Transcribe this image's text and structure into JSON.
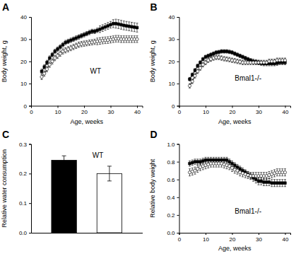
{
  "chart_data": [
    {
      "type": "line",
      "title": "A",
      "annotations": [
        "WT"
      ],
      "xlabel": "Age, weeks",
      "ylabel": "Body weight, g",
      "xlim": [
        0,
        42
      ],
      "ylim": [
        0,
        40
      ],
      "xticks": [
        0,
        10,
        20,
        30,
        40
      ],
      "yticks": [
        0,
        10,
        20,
        30,
        40
      ],
      "x": [
        4,
        5,
        6,
        7,
        8,
        9,
        10,
        11,
        12,
        13,
        14,
        15,
        16,
        17,
        18,
        19,
        20,
        21,
        22,
        23,
        24,
        25,
        26,
        27,
        28,
        29,
        30,
        31,
        32,
        33,
        34,
        35,
        36,
        37,
        38,
        39,
        40
      ],
      "series": [
        {
          "color": "black",
          "marker": "square",
          "line_style": "solid",
          "values": [
            15.5,
            17.5,
            19.5,
            21.5,
            23.0,
            24.5,
            25.5,
            26.5,
            27.5,
            28.5,
            29.0,
            29.5,
            30.0,
            30.5,
            31.0,
            31.5,
            32.0,
            32.5,
            33.0,
            33.5,
            33.5,
            34.0,
            34.5,
            35.0,
            35.5,
            36.0,
            36.5,
            37.0,
            37.0,
            36.8,
            36.5,
            36.2,
            36.0,
            35.8,
            35.6,
            35.4,
            35.2
          ],
          "errors": [
            1.0,
            1.0,
            1.0,
            1.0,
            1.0,
            1.0,
            1.0,
            1.0,
            1.0,
            1.0,
            1.0,
            1.0,
            1.0,
            1.0,
            1.0,
            1.0,
            1.0,
            1.0,
            1.0,
            1.0,
            1.0,
            1.0,
            1.5,
            1.5,
            1.5,
            1.5,
            1.5,
            1.8,
            2.0,
            2.0,
            2.0,
            2.0,
            2.0,
            2.0,
            2.0,
            2.0,
            2.0
          ]
        },
        {
          "color": "black",
          "marker": "open-circle",
          "line_style": "solid",
          "values": [
            13.0,
            14.5,
            16.5,
            18.5,
            20.0,
            21.5,
            22.5,
            23.5,
            24.5,
            25.0,
            25.5,
            26.0,
            26.5,
            27.0,
            27.5,
            27.8,
            28.0,
            28.2,
            28.4,
            28.6,
            28.8,
            29.0,
            29.2,
            29.4,
            29.5,
            29.6,
            29.8,
            30.0,
            30.2,
            30.2,
            30.0,
            30.0,
            30.0,
            30.0,
            30.0,
            30.0,
            30.0
          ],
          "errors": [
            1.2,
            1.2,
            1.2,
            1.2,
            1.2,
            1.2,
            1.2,
            1.2,
            1.2,
            1.2,
            1.2,
            1.2,
            1.2,
            1.2,
            1.2,
            1.2,
            1.2,
            1.2,
            1.2,
            1.2,
            1.2,
            1.5,
            1.5,
            1.5,
            1.5,
            1.5,
            1.5,
            1.5,
            1.5,
            1.5,
            1.5,
            1.5,
            1.5,
            1.5,
            1.5,
            1.5,
            1.5
          ]
        }
      ]
    },
    {
      "type": "line",
      "title": "B",
      "annotations": [
        "Bmal1-/-"
      ],
      "xlabel": "Age, weeks",
      "ylabel": "Body weight, g",
      "xlim": [
        0,
        42
      ],
      "ylim": [
        0,
        40
      ],
      "xticks": [
        0,
        10,
        20,
        30,
        40
      ],
      "yticks": [
        0,
        10,
        20,
        30,
        40
      ],
      "x": [
        4,
        5,
        6,
        7,
        8,
        9,
        10,
        11,
        12,
        13,
        14,
        15,
        16,
        17,
        18,
        19,
        20,
        21,
        22,
        23,
        24,
        25,
        26,
        27,
        28,
        29,
        30,
        31,
        32,
        33,
        34,
        35,
        36,
        37,
        38,
        39,
        40
      ],
      "series": [
        {
          "color": "black",
          "marker": "square",
          "line_style": "solid",
          "values": [
            12.0,
            14.0,
            16.0,
            18.0,
            19.5,
            21.0,
            22.0,
            22.5,
            23.0,
            23.5,
            24.0,
            24.2,
            24.5,
            24.5,
            24.5,
            24.3,
            24.0,
            23.5,
            23.0,
            22.5,
            22.0,
            21.5,
            21.0,
            20.5,
            20.0,
            19.8,
            19.5,
            19.2,
            19.0,
            19.0,
            19.0,
            19.0,
            19.0,
            19.2,
            19.5,
            19.5,
            19.5
          ],
          "errors": [
            0.8,
            0.8,
            0.8,
            0.8,
            0.8,
            0.8,
            0.8,
            0.8,
            0.8,
            0.8,
            0.8,
            0.8,
            0.8,
            0.8,
            0.8,
            0.8,
            0.8,
            0.8,
            0.8,
            0.8,
            0.8,
            0.8,
            0.8,
            0.8,
            1.0,
            1.0,
            1.0,
            1.0,
            1.0,
            1.0,
            1.0,
            1.0,
            1.0,
            1.0,
            1.0,
            1.0,
            1.0
          ]
        },
        {
          "color": "black",
          "marker": "open-circle",
          "line_style": "solid",
          "values": [
            9.0,
            11.0,
            13.5,
            15.5,
            17.0,
            18.5,
            19.5,
            20.5,
            21.0,
            21.5,
            21.8,
            21.8,
            21.5,
            21.2,
            21.0,
            20.8,
            20.5,
            20.3,
            20.0,
            19.8,
            19.5,
            19.5,
            19.5,
            19.5,
            19.5,
            19.5,
            19.5,
            19.5,
            19.5,
            19.5,
            20.0,
            20.0,
            20.0,
            20.5,
            20.5,
            20.5,
            20.5
          ],
          "errors": [
            1.0,
            1.0,
            1.0,
            1.0,
            1.0,
            1.0,
            1.0,
            1.0,
            1.0,
            1.0,
            1.0,
            1.0,
            1.0,
            1.0,
            1.0,
            1.0,
            1.0,
            1.0,
            1.0,
            1.0,
            1.0,
            1.0,
            1.0,
            1.0,
            1.0,
            1.0,
            1.0,
            1.0,
            1.0,
            1.0,
            1.0,
            1.0,
            1.0,
            1.0,
            1.0,
            1.0,
            1.0
          ]
        }
      ]
    },
    {
      "type": "bar",
      "title": "C",
      "annotations": [
        "WT"
      ],
      "ylabel": "Relative water consumption",
      "categories": [
        null,
        null
      ],
      "values": [
        0.245,
        0.2
      ],
      "errors": [
        0.015,
        0.025
      ],
      "colors": [
        "black",
        "white"
      ],
      "ylim": [
        0,
        0.3
      ],
      "yticks": [
        {
          "value": 0.0,
          "label": "0.0"
        },
        0.1,
        0.2,
        0.3
      ],
      "tick_labels": "y"
    },
    {
      "type": "line",
      "title": "D",
      "annotations": [
        "Bmal1-/-"
      ],
      "xlabel": "Age, weeks",
      "ylabel": "Relative body weight",
      "xlim": [
        0,
        42
      ],
      "ylim": [
        0,
        1.0
      ],
      "xticks": [
        0,
        10,
        20,
        30,
        40
      ],
      "yticks": [
        {
          "value": 0,
          "label": "0.0"
        },
        0.2,
        0.4,
        0.6,
        0.8,
        {
          "value": 1.0,
          "label": "1.0"
        }
      ],
      "x": [
        4,
        5,
        6,
        7,
        8,
        9,
        10,
        11,
        12,
        13,
        14,
        15,
        16,
        17,
        18,
        19,
        20,
        21,
        22,
        23,
        24,
        25,
        26,
        27,
        28,
        29,
        30,
        31,
        32,
        33,
        34,
        35,
        36,
        37,
        38,
        39,
        40
      ],
      "series": [
        {
          "color": "black",
          "marker": "square",
          "line_style": "solid",
          "values": [
            0.78,
            0.79,
            0.8,
            0.8,
            0.8,
            0.81,
            0.82,
            0.82,
            0.82,
            0.82,
            0.82,
            0.82,
            0.82,
            0.82,
            0.82,
            0.8,
            0.78,
            0.76,
            0.74,
            0.72,
            0.7,
            0.68,
            0.66,
            0.64,
            0.62,
            0.6,
            0.58,
            0.58,
            0.57,
            0.57,
            0.57,
            0.56,
            0.56,
            0.56,
            0.56,
            0.56,
            0.56
          ],
          "errors": [
            0.03,
            0.03,
            0.03,
            0.03,
            0.03,
            0.03,
            0.03,
            0.03,
            0.03,
            0.03,
            0.03,
            0.03,
            0.03,
            0.03,
            0.03,
            0.03,
            0.03,
            0.03,
            0.03,
            0.03,
            0.03,
            0.03,
            0.03,
            0.03,
            0.04,
            0.04,
            0.04,
            0.04,
            0.04,
            0.04,
            0.04,
            0.04,
            0.04,
            0.04,
            0.04,
            0.04,
            0.04
          ]
        },
        {
          "color": "black",
          "marker": "open-circle",
          "line_style": "solid",
          "values": [
            0.68,
            0.69,
            0.7,
            0.72,
            0.74,
            0.75,
            0.76,
            0.77,
            0.78,
            0.78,
            0.78,
            0.78,
            0.78,
            0.77,
            0.76,
            0.75,
            0.73,
            0.71,
            0.7,
            0.68,
            0.67,
            0.66,
            0.65,
            0.64,
            0.64,
            0.64,
            0.64,
            0.64,
            0.64,
            0.64,
            0.65,
            0.66,
            0.67,
            0.68,
            0.68,
            0.68,
            0.68
          ],
          "errors": [
            0.04,
            0.04,
            0.04,
            0.04,
            0.04,
            0.04,
            0.04,
            0.04,
            0.04,
            0.04,
            0.04,
            0.04,
            0.04,
            0.04,
            0.04,
            0.04,
            0.04,
            0.04,
            0.04,
            0.04,
            0.04,
            0.04,
            0.04,
            0.04,
            0.04,
            0.04,
            0.04,
            0.04,
            0.04,
            0.04,
            0.04,
            0.04,
            0.04,
            0.04,
            0.04,
            0.04,
            0.04
          ]
        }
      ]
    }
  ]
}
